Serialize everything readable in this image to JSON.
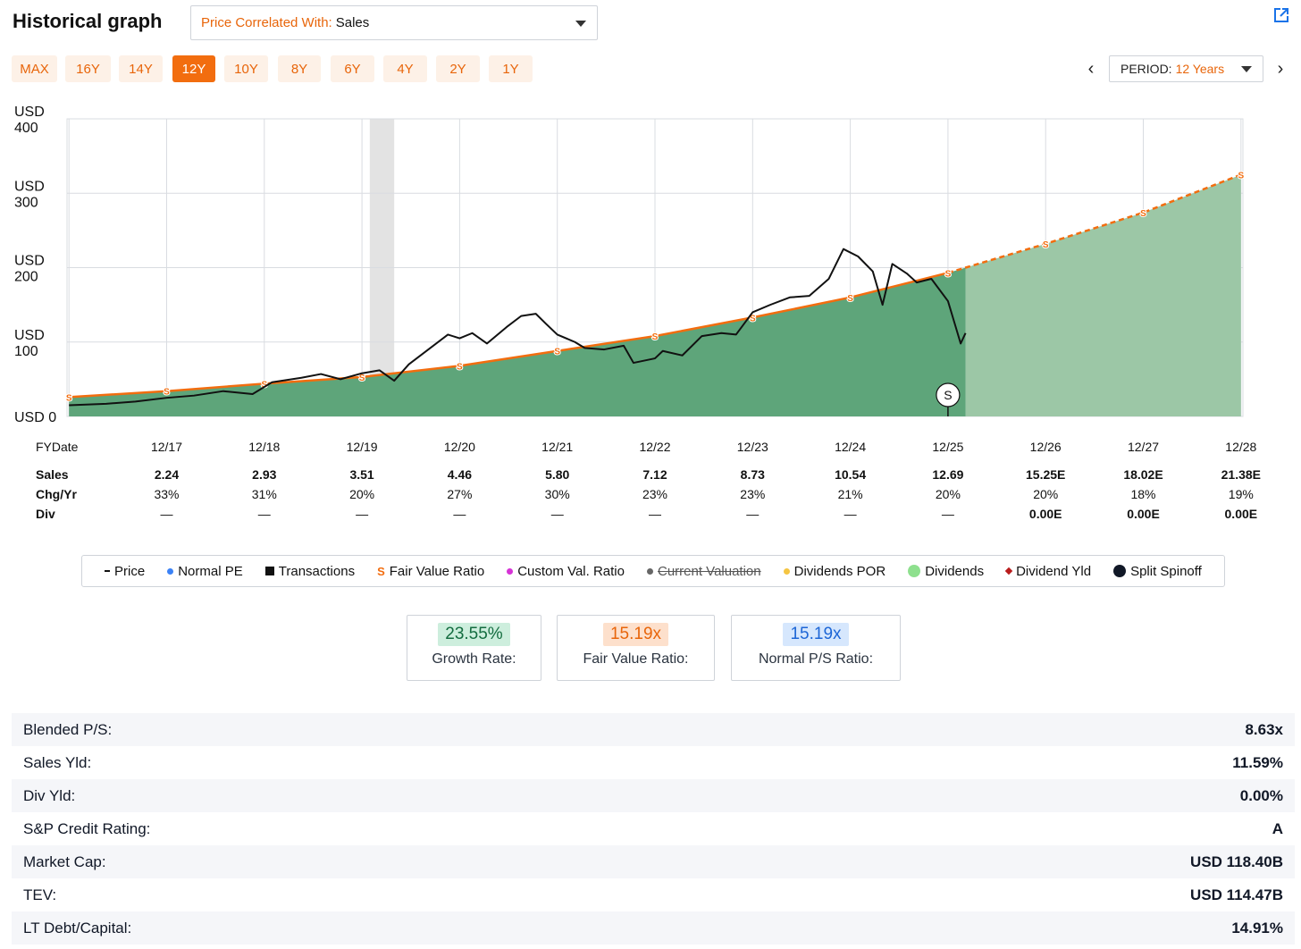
{
  "header": {
    "title": "Historical graph",
    "correlate_label": "Price Correlated With:",
    "correlate_value": "Sales"
  },
  "ranges": [
    "MAX",
    "16Y",
    "14Y",
    "12Y",
    "10Y",
    "8Y",
    "6Y",
    "4Y",
    "2Y",
    "1Y"
  ],
  "active_range": "12Y",
  "period": {
    "label": "PERIOD:",
    "value": "12 Years",
    "prev": "‹",
    "next": "›"
  },
  "colors": {
    "accent_orange": "#f26d0f",
    "area_green": "#5ea57a",
    "area_green_estimate": "#9cc7a6",
    "price_line": "#111111",
    "recession_band": "#e3e3e3"
  },
  "chart_data": {
    "type": "area",
    "y_axis": {
      "labels": [
        [
          "USD",
          "0"
        ],
        [
          "USD",
          "100"
        ],
        [
          "USD",
          "200"
        ],
        [
          "USD",
          "300"
        ],
        [
          "USD",
          "400"
        ]
      ],
      "ticks": [
        0,
        100,
        200,
        300,
        400
      ],
      "range": [
        0,
        400
      ]
    },
    "x_axis": {
      "range": [
        2016.9,
        2028.94
      ],
      "categories": [
        "12/17",
        "12/18",
        "12/19",
        "12/20",
        "12/21",
        "12/22",
        "12/23",
        "12/24",
        "12/25",
        "12/26",
        "12/27",
        "12/28"
      ]
    },
    "grid": true,
    "recession_band": {
      "start": 2020.0,
      "end": 2020.25
    },
    "fair_value": {
      "name": "Fair Value Ratio",
      "marker": "S",
      "points": [
        [
          2016.92,
          26
        ],
        [
          2017.92,
          34
        ],
        [
          2018.92,
          44
        ],
        [
          2019.92,
          53
        ],
        [
          2020.92,
          68
        ],
        [
          2021.92,
          88
        ],
        [
          2022.92,
          108
        ],
        [
          2023.92,
          133
        ],
        [
          2024.92,
          160
        ],
        [
          2025.92,
          193
        ]
      ],
      "estimate_points": [
        [
          2025.92,
          193
        ],
        [
          2026.92,
          232
        ],
        [
          2027.92,
          274
        ],
        [
          2028.92,
          325
        ]
      ]
    },
    "price": {
      "name": "Price",
      "points": [
        [
          2016.92,
          15
        ],
        [
          2017.3,
          17
        ],
        [
          2017.6,
          20
        ],
        [
          2017.92,
          25
        ],
        [
          2018.2,
          28
        ],
        [
          2018.5,
          34
        ],
        [
          2018.8,
          30
        ],
        [
          2019.0,
          46
        ],
        [
          2019.3,
          52
        ],
        [
          2019.5,
          57
        ],
        [
          2019.7,
          50
        ],
        [
          2019.92,
          58
        ],
        [
          2020.1,
          62
        ],
        [
          2020.25,
          48
        ],
        [
          2020.4,
          70
        ],
        [
          2020.6,
          90
        ],
        [
          2020.8,
          110
        ],
        [
          2020.92,
          105
        ],
        [
          2021.05,
          112
        ],
        [
          2021.2,
          98
        ],
        [
          2021.4,
          120
        ],
        [
          2021.55,
          135
        ],
        [
          2021.7,
          138
        ],
        [
          2021.8,
          125
        ],
        [
          2021.92,
          110
        ],
        [
          2022.1,
          100
        ],
        [
          2022.2,
          92
        ],
        [
          2022.4,
          90
        ],
        [
          2022.6,
          95
        ],
        [
          2022.7,
          72
        ],
        [
          2022.92,
          78
        ],
        [
          2023.0,
          88
        ],
        [
          2023.2,
          82
        ],
        [
          2023.4,
          108
        ],
        [
          2023.6,
          112
        ],
        [
          2023.75,
          110
        ],
        [
          2023.92,
          140
        ],
        [
          2024.1,
          150
        ],
        [
          2024.3,
          160
        ],
        [
          2024.5,
          162
        ],
        [
          2024.7,
          185
        ],
        [
          2024.85,
          225
        ],
        [
          2025.0,
          215
        ],
        [
          2025.15,
          195
        ],
        [
          2025.25,
          150
        ],
        [
          2025.35,
          205
        ],
        [
          2025.5,
          192
        ],
        [
          2025.6,
          180
        ],
        [
          2025.75,
          185
        ],
        [
          2025.92,
          155
        ],
        [
          2026.0,
          120
        ],
        [
          2026.05,
          98
        ],
        [
          2026.1,
          112
        ]
      ]
    },
    "split_spinoff": {
      "label": "S",
      "x": 2025.92
    },
    "fy_rows": {
      "header_label": "FYDate",
      "dates": [
        "12/17",
        "12/18",
        "12/19",
        "12/20",
        "12/21",
        "12/22",
        "12/23",
        "12/24",
        "12/25",
        "12/26",
        "12/27",
        "12/28"
      ],
      "rows": [
        {
          "label": "Sales",
          "bold": true,
          "values": [
            "2.24",
            "2.93",
            "3.51",
            "4.46",
            "5.80",
            "7.12",
            "8.73",
            "10.54",
            "12.69",
            "15.25E",
            "18.02E",
            "21.38E"
          ]
        },
        {
          "label": "Chg/Yr",
          "bold": false,
          "values": [
            "33%",
            "31%",
            "20%",
            "27%",
            "30%",
            "23%",
            "23%",
            "21%",
            "20%",
            "20%",
            "18%",
            "19%"
          ]
        },
        {
          "label": "Div",
          "bold": false,
          "values": [
            "—",
            "—",
            "—",
            "—",
            "—",
            "—",
            "—",
            "—",
            "—",
            "0.00E",
            "0.00E",
            "0.00E"
          ]
        }
      ]
    }
  },
  "legend": [
    {
      "label": "Price",
      "sym": "dash",
      "color": "#111111"
    },
    {
      "label": "Normal PE",
      "sym": "dot",
      "color": "#3b82f6"
    },
    {
      "label": "Transactions",
      "sym": "square",
      "color": "#111111"
    },
    {
      "label": "Fair Value Ratio",
      "sym": "S",
      "color": "#f26d0f"
    },
    {
      "label": "Custom Val. Ratio",
      "sym": "dot",
      "color": "#d633d6"
    },
    {
      "label": "Current Valuation",
      "sym": "dot",
      "color": "#666666",
      "strike": true
    },
    {
      "label": "Dividends POR",
      "sym": "dot",
      "color": "#f5c542"
    },
    {
      "label": "Dividends",
      "sym": "bigdot",
      "color": "#8ee08e"
    },
    {
      "label": "Dividend Yld",
      "sym": "diamond",
      "color": "#b91c1c"
    },
    {
      "label": "Split Spinoff",
      "sym": "bigdot",
      "color": "#111827"
    }
  ],
  "stats": [
    {
      "value": "23.55%",
      "label": "Growth Rate:",
      "bg": "#cdeedd",
      "fg": "#136c3f"
    },
    {
      "value": "15.19x",
      "label": "Fair Value Ratio:",
      "bg": "#fde0cc",
      "fg": "#e8650a"
    },
    {
      "value": "15.19x",
      "label": "Normal P/S Ratio:",
      "bg": "#d6e7fd",
      "fg": "#1d66d6"
    }
  ],
  "metrics": [
    {
      "label": "Blended P/S:",
      "value": "8.63x"
    },
    {
      "label": "Sales Yld:",
      "value": "11.59%"
    },
    {
      "label": "Div Yld:",
      "value": "0.00%"
    },
    {
      "label": "S&P Credit Rating:",
      "value": "A"
    },
    {
      "label": "Market Cap:",
      "value": "USD 118.40B"
    },
    {
      "label": "TEV:",
      "value": "USD 114.47B"
    },
    {
      "label": "LT Debt/Capital:",
      "value": "14.91%"
    }
  ]
}
